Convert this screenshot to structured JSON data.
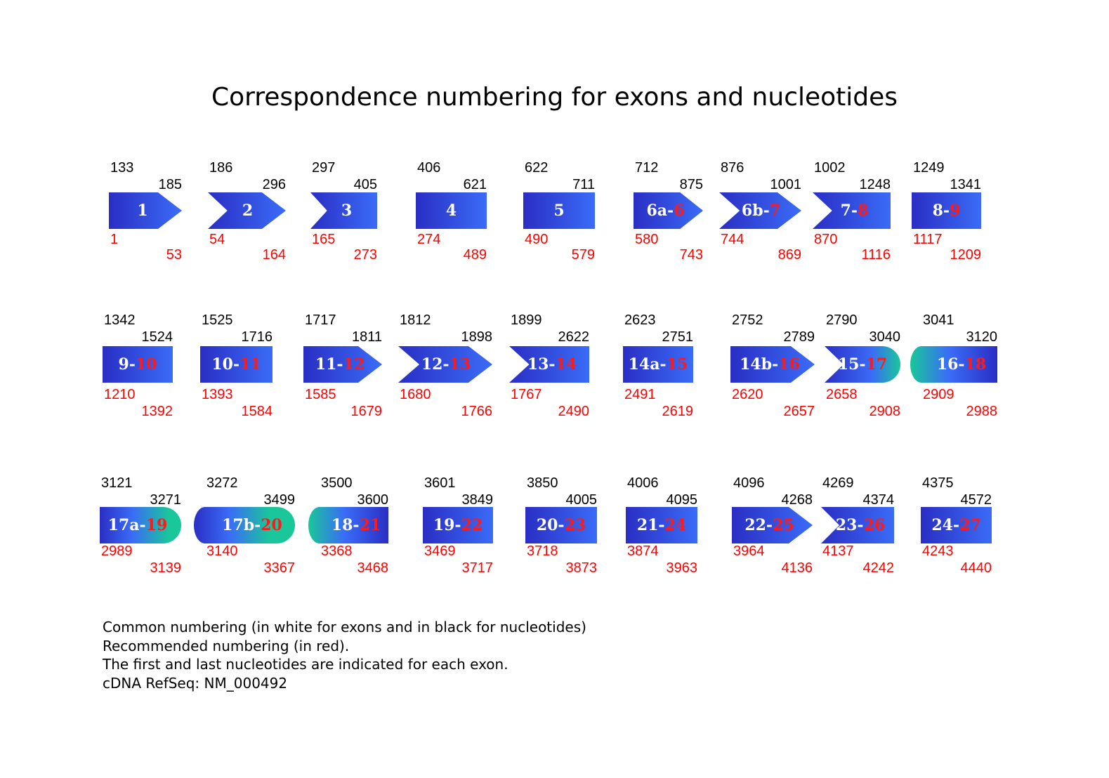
{
  "title": "Correspondence numbering for exons and nucleotides",
  "colors": {
    "exon_blue_dark": "#2a2ec4",
    "exon_blue_light": "#3a6cf7",
    "exon_green": "#19c79a",
    "common_number": "#000000",
    "recommended_number": "#ff0000"
  },
  "exons": [
    {
      "label": "1",
      "new": "",
      "shape": "pentagon",
      "start_common": "133",
      "end_common": "185",
      "start_new": "1",
      "end_new": "53"
    },
    {
      "label": "2",
      "new": "",
      "shape": "chevron",
      "start_common": "186",
      "end_common": "296",
      "start_new": "54",
      "end_new": "164"
    },
    {
      "label": "3",
      "new": "",
      "shape": "notch",
      "start_common": "297",
      "end_common": "405",
      "start_new": "165",
      "end_new": "273"
    },
    {
      "label": "4",
      "new": "",
      "shape": "rect",
      "start_common": "406",
      "end_common": "621",
      "start_new": "274",
      "end_new": "489"
    },
    {
      "label": "5",
      "new": "",
      "shape": "rect",
      "start_common": "622",
      "end_common": "711",
      "start_new": "490",
      "end_new": "579"
    },
    {
      "label": "6a-",
      "new": "6",
      "shape": "pentagon",
      "start_common": "712",
      "end_common": "875",
      "start_new": "580",
      "end_new": "743"
    },
    {
      "label": "6b-",
      "new": "7",
      "shape": "chevron",
      "start_common": "876",
      "end_common": "1001",
      "start_new": "744",
      "end_new": "869"
    },
    {
      "label": "7-",
      "new": "8",
      "shape": "notch",
      "start_common": "1002",
      "end_common": "1248",
      "start_new": "870",
      "end_new": "1116"
    },
    {
      "label": "8-",
      "new": "9",
      "shape": "rect",
      "start_common": "1249",
      "end_common": "1341",
      "start_new": "1117",
      "end_new": "1209"
    },
    {
      "label": "9-",
      "new": "10",
      "shape": "rect",
      "start_common": "1342",
      "end_common": "1524",
      "start_new": "1210",
      "end_new": "1392"
    },
    {
      "label": "10-",
      "new": "11",
      "shape": "rect",
      "start_common": "1525",
      "end_common": "1716",
      "start_new": "1393",
      "end_new": "1584"
    },
    {
      "label": "11-",
      "new": "12",
      "shape": "pentagon",
      "start_common": "1717",
      "end_common": "1811",
      "start_new": "1585",
      "end_new": "1679"
    },
    {
      "label": "12-",
      "new": "13",
      "shape": "chevron",
      "start_common": "1812",
      "end_common": "1898",
      "start_new": "1680",
      "end_new": "1766"
    },
    {
      "label": "13-",
      "new": "14",
      "shape": "notch",
      "start_common": "1899",
      "end_common": "2622",
      "start_new": "1767",
      "end_new": "2490"
    },
    {
      "label": "14a-",
      "new": "15",
      "shape": "rect",
      "start_common": "2623",
      "end_common": "2751",
      "start_new": "2491",
      "end_new": "2619"
    },
    {
      "label": "14b-",
      "new": "16",
      "shape": "pentagon",
      "start_common": "2752",
      "end_common": "2789",
      "start_new": "2620",
      "end_new": "2657"
    },
    {
      "label": "15-",
      "new": "17",
      "shape": "chevron-round",
      "start_common": "2790",
      "end_common": "3040",
      "start_new": "2658",
      "end_new": "2908"
    },
    {
      "label": "16-",
      "new": "18",
      "shape": "crescent",
      "start_common": "3041",
      "end_common": "3120",
      "start_new": "2909",
      "end_new": "2988"
    },
    {
      "label": "17a-",
      "new": "19",
      "shape": "round-end",
      "start_common": "3121",
      "end_common": "3271",
      "start_new": "2989",
      "end_new": "3139"
    },
    {
      "label": "17b-",
      "new": "20",
      "shape": "crescent-round",
      "start_common": "3272",
      "end_common": "3499",
      "start_new": "3140",
      "end_new": "3367"
    },
    {
      "label": "18-",
      "new": "21",
      "shape": "crescent",
      "start_common": "3500",
      "end_common": "3600",
      "start_new": "3368",
      "end_new": "3468"
    },
    {
      "label": "19-",
      "new": "22",
      "shape": "rect",
      "start_common": "3601",
      "end_common": "3849",
      "start_new": "3469",
      "end_new": "3717"
    },
    {
      "label": "20-",
      "new": "23",
      "shape": "rect",
      "start_common": "3850",
      "end_common": "4005",
      "start_new": "3718",
      "end_new": "3873"
    },
    {
      "label": "21-",
      "new": "24",
      "shape": "rect",
      "start_common": "4006",
      "end_common": "4095",
      "start_new": "3874",
      "end_new": "3963"
    },
    {
      "label": "22-",
      "new": "25",
      "shape": "pentagon",
      "start_common": "4096",
      "end_common": "4268",
      "start_new": "3964",
      "end_new": "4136"
    },
    {
      "label": "23-",
      "new": "26",
      "shape": "notch",
      "start_common": "4269",
      "end_common": "4374",
      "start_new": "4137",
      "end_new": "4242"
    },
    {
      "label": "24-",
      "new": "27",
      "shape": "rect",
      "start_common": "4375",
      "end_common": "4572",
      "start_new": "4243",
      "end_new": "4440"
    }
  ],
  "legend": [
    "Common numbering (in white for exons and in black for nucleotides)",
    "Recommended numbering (in red).",
    "The first and last nucleotides are indicated for each exon.",
    "cDNA RefSeq: NM_000492"
  ]
}
